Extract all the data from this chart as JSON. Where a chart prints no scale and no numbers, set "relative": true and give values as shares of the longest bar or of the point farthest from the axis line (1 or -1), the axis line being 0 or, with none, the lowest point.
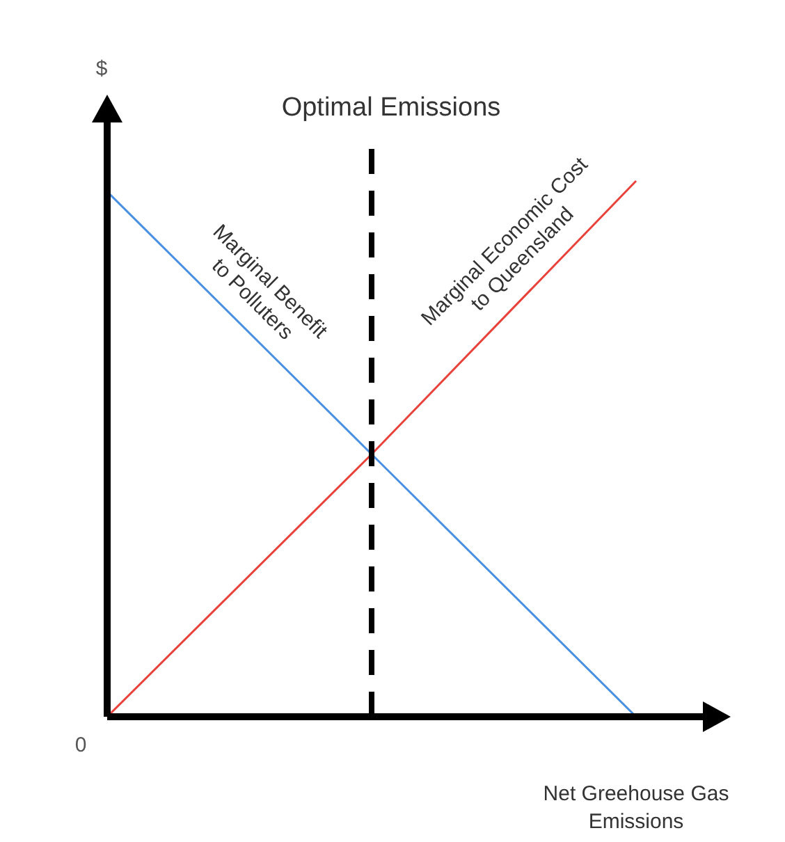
{
  "chart_data": {
    "type": "line",
    "relative": true,
    "ylabel": "$",
    "xlabel": "Net Greehouse Gas Emissions",
    "categories": [
      null,
      null,
      null
    ],
    "series": [
      {
        "name": "Marginal Benefit to Polluters",
        "color": "#4a90e2",
        "values": [
          0.98,
          0.49,
          0
        ]
      },
      {
        "name": "Marginal Economic Cost to Queensland",
        "color": "#e8423a",
        "values": [
          0,
          0.49,
          1
        ]
      }
    ],
    "title": "Optimal Emissions",
    "annotations": [
      "0"
    ],
    "legend": false,
    "marker": "none",
    "line_style": "solid"
  }
}
